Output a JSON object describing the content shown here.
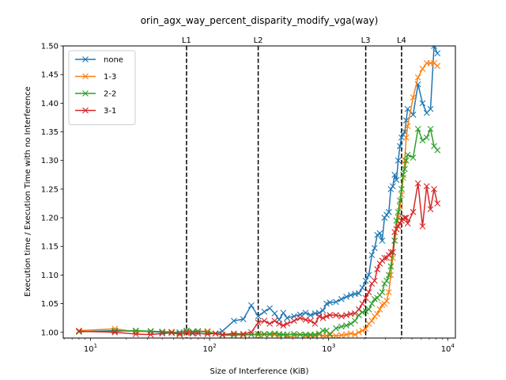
{
  "chart_data": {
    "type": "line",
    "title": "orin_agx_way_percent_disparity_modify_vga(way)",
    "xlabel": "Size of Interference (KiB)",
    "ylabel": "Execution time / Execution Time with no Interference",
    "xscale": "log",
    "xlim": [
      5.9,
      11600
    ],
    "ylim": [
      0.99,
      1.5
    ],
    "x_tick_labels": [
      "10^1",
      "10^2",
      "10^3",
      "10^4"
    ],
    "x_tick_values": [
      10,
      100,
      1000,
      10000
    ],
    "y_ticks": [
      1.0,
      1.1,
      1.2,
      1.3,
      1.4,
      1.5
    ],
    "y_tick_labels": [
      "1.00",
      "1.05",
      "1.10",
      "1.15",
      "1.20",
      "1.25",
      "1.30",
      "1.35",
      "1.40",
      "1.45",
      "1.50"
    ],
    "y_tick_label_values": [
      1.0,
      1.05,
      1.1,
      1.15,
      1.2,
      1.25,
      1.3,
      1.35,
      1.4,
      1.45,
      1.5
    ],
    "grid": false,
    "legend_position": "top-left",
    "marker": "x",
    "vertical_lines": [
      {
        "label": "L1",
        "x": 64
      },
      {
        "label": "L2",
        "x": 256
      },
      {
        "label": "L3",
        "x": 2048
      },
      {
        "label": "L4",
        "x": 4096
      }
    ],
    "series": [
      {
        "name": "none",
        "color": "#1f77b4",
        "points": [
          [
            8,
            1.001
          ],
          [
            16,
            1.003
          ],
          [
            24,
            1.002
          ],
          [
            32,
            1.001
          ],
          [
            40,
            1.0
          ],
          [
            48,
            1.0
          ],
          [
            56,
            1.0
          ],
          [
            64,
            1.001
          ],
          [
            72,
            1.0
          ],
          [
            80,
            1.001
          ],
          [
            96,
            1.001
          ],
          [
            112,
            0.998
          ],
          [
            128,
            1.002
          ],
          [
            160,
            1.02
          ],
          [
            192,
            1.023
          ],
          [
            224,
            1.047
          ],
          [
            256,
            1.028
          ],
          [
            288,
            1.036
          ],
          [
            320,
            1.042
          ],
          [
            352,
            1.033
          ],
          [
            384,
            1.022
          ],
          [
            416,
            1.034
          ],
          [
            448,
            1.025
          ],
          [
            512,
            1.028
          ],
          [
            576,
            1.031
          ],
          [
            640,
            1.034
          ],
          [
            704,
            1.03
          ],
          [
            768,
            1.033
          ],
          [
            832,
            1.034
          ],
          [
            896,
            1.038
          ],
          [
            960,
            1.05
          ],
          [
            1024,
            1.052
          ],
          [
            1152,
            1.053
          ],
          [
            1280,
            1.058
          ],
          [
            1408,
            1.062
          ],
          [
            1536,
            1.065
          ],
          [
            1664,
            1.067
          ],
          [
            1792,
            1.068
          ],
          [
            1920,
            1.078
          ],
          [
            2048,
            1.09
          ],
          [
            2176,
            1.1
          ],
          [
            2304,
            1.135
          ],
          [
            2432,
            1.147
          ],
          [
            2560,
            1.17
          ],
          [
            2688,
            1.173
          ],
          [
            2816,
            1.16
          ],
          [
            2944,
            1.2
          ],
          [
            3072,
            1.205
          ],
          [
            3200,
            1.21
          ],
          [
            3328,
            1.25
          ],
          [
            3456,
            1.255
          ],
          [
            3584,
            1.275
          ],
          [
            3712,
            1.266
          ],
          [
            3840,
            1.3
          ],
          [
            3968,
            1.325
          ],
          [
            4096,
            1.34
          ],
          [
            4224,
            1.345
          ],
          [
            4352,
            1.35
          ],
          [
            4480,
            1.37
          ],
          [
            4608,
            1.39
          ],
          [
            5120,
            1.38
          ],
          [
            5632,
            1.433
          ],
          [
            6144,
            1.4
          ],
          [
            6656,
            1.383
          ],
          [
            7168,
            1.39
          ],
          [
            7680,
            1.5
          ],
          [
            8192,
            1.487
          ]
        ]
      },
      {
        "name": "1-3",
        "color": "#ff7f0e",
        "points": [
          [
            8,
            1.003
          ],
          [
            16,
            1.006
          ],
          [
            24,
            1.001
          ],
          [
            32,
            1.002
          ],
          [
            40,
            1.001
          ],
          [
            48,
            1.001
          ],
          [
            56,
            0.996
          ],
          [
            64,
            1.0
          ],
          [
            72,
            1.001
          ],
          [
            80,
            1.002
          ],
          [
            96,
            1.002
          ],
          [
            112,
            0.998
          ],
          [
            128,
            0.996
          ],
          [
            160,
            0.996
          ],
          [
            192,
            0.995
          ],
          [
            224,
            0.996
          ],
          [
            256,
            0.995
          ],
          [
            288,
            0.996
          ],
          [
            320,
            0.996
          ],
          [
            352,
            0.996
          ],
          [
            384,
            0.994
          ],
          [
            416,
            0.996
          ],
          [
            448,
            0.993
          ],
          [
            512,
            0.994
          ],
          [
            576,
            0.996
          ],
          [
            640,
            0.994
          ],
          [
            704,
            0.994
          ],
          [
            768,
            0.994
          ],
          [
            832,
            0.996
          ],
          [
            896,
            0.994
          ],
          [
            960,
            0.994
          ],
          [
            1024,
            0.995
          ],
          [
            1152,
            0.994
          ],
          [
            1280,
            0.995
          ],
          [
            1408,
            0.996
          ],
          [
            1536,
            0.998
          ],
          [
            1664,
            0.996
          ],
          [
            1792,
            1.0
          ],
          [
            1920,
            1.003
          ],
          [
            2048,
            1.006
          ],
          [
            2176,
            1.015
          ],
          [
            2304,
            1.02
          ],
          [
            2432,
            1.028
          ],
          [
            2560,
            1.032
          ],
          [
            2688,
            1.04
          ],
          [
            2816,
            1.048
          ],
          [
            2944,
            1.05
          ],
          [
            3072,
            1.055
          ],
          [
            3200,
            1.07
          ],
          [
            3328,
            1.1
          ],
          [
            3456,
            1.13
          ],
          [
            3584,
            1.16
          ],
          [
            3712,
            1.18
          ],
          [
            3840,
            1.2
          ],
          [
            3968,
            1.22
          ],
          [
            4096,
            1.24
          ],
          [
            4224,
            1.27
          ],
          [
            4352,
            1.3
          ],
          [
            4480,
            1.34
          ],
          [
            4608,
            1.36
          ],
          [
            5120,
            1.41
          ],
          [
            5632,
            1.445
          ],
          [
            6144,
            1.46
          ],
          [
            6656,
            1.47
          ],
          [
            7168,
            1.47
          ],
          [
            7680,
            1.47
          ],
          [
            8192,
            1.465
          ]
        ]
      },
      {
        "name": "2-2",
        "color": "#2ca02c",
        "points": [
          [
            8,
            1.001
          ],
          [
            16,
            1.002
          ],
          [
            24,
            1.003
          ],
          [
            32,
            1.002
          ],
          [
            40,
            1.001
          ],
          [
            48,
            1.0
          ],
          [
            56,
            0.999
          ],
          [
            64,
            1.003
          ],
          [
            72,
            1.001
          ],
          [
            80,
            1.002
          ],
          [
            96,
            1.0
          ],
          [
            112,
            0.998
          ],
          [
            128,
            0.995
          ],
          [
            160,
            0.995
          ],
          [
            192,
            0.996
          ],
          [
            224,
            0.996
          ],
          [
            256,
            0.997
          ],
          [
            288,
            0.997
          ],
          [
            320,
            0.997
          ],
          [
            352,
            0.998
          ],
          [
            384,
            0.997
          ],
          [
            416,
            0.996
          ],
          [
            448,
            0.996
          ],
          [
            512,
            0.997
          ],
          [
            576,
            0.996
          ],
          [
            640,
            0.996
          ],
          [
            704,
            0.996
          ],
          [
            768,
            0.996
          ],
          [
            832,
            0.998
          ],
          [
            896,
            1.003
          ],
          [
            960,
            1.003
          ],
          [
            1024,
            0.997
          ],
          [
            1152,
            1.007
          ],
          [
            1280,
            1.01
          ],
          [
            1408,
            1.012
          ],
          [
            1536,
            1.015
          ],
          [
            1664,
            1.02
          ],
          [
            1792,
            1.03
          ],
          [
            1920,
            1.035
          ],
          [
            2048,
            1.037
          ],
          [
            2176,
            1.04
          ],
          [
            2304,
            1.05
          ],
          [
            2432,
            1.058
          ],
          [
            2560,
            1.06
          ],
          [
            2688,
            1.065
          ],
          [
            2816,
            1.07
          ],
          [
            2944,
            1.085
          ],
          [
            3072,
            1.09
          ],
          [
            3200,
            1.1
          ],
          [
            3328,
            1.115
          ],
          [
            3456,
            1.14
          ],
          [
            3584,
            1.16
          ],
          [
            3712,
            1.195
          ],
          [
            3840,
            1.21
          ],
          [
            3968,
            1.23
          ],
          [
            4096,
            1.25
          ],
          [
            4224,
            1.275
          ],
          [
            4352,
            1.285
          ],
          [
            4480,
            1.3
          ],
          [
            4608,
            1.31
          ],
          [
            5120,
            1.305
          ],
          [
            5632,
            1.355
          ],
          [
            6144,
            1.335
          ],
          [
            6656,
            1.34
          ],
          [
            7168,
            1.355
          ],
          [
            7680,
            1.325
          ],
          [
            8192,
            1.318
          ]
        ]
      },
      {
        "name": "3-1",
        "color": "#d62728",
        "points": [
          [
            8,
            1.002
          ],
          [
            16,
            1.0
          ],
          [
            24,
            0.997
          ],
          [
            32,
            0.996
          ],
          [
            40,
            0.998
          ],
          [
            48,
            0.999
          ],
          [
            56,
            0.997
          ],
          [
            64,
            0.999
          ],
          [
            72,
            0.998
          ],
          [
            80,
            0.998
          ],
          [
            96,
            0.997
          ],
          [
            112,
            0.998
          ],
          [
            128,
            0.996
          ],
          [
            160,
            0.998
          ],
          [
            192,
            0.997
          ],
          [
            224,
            1.0
          ],
          [
            256,
            1.017
          ],
          [
            288,
            1.02
          ],
          [
            320,
            1.015
          ],
          [
            352,
            1.02
          ],
          [
            384,
            1.015
          ],
          [
            416,
            1.012
          ],
          [
            448,
            1.015
          ],
          [
            512,
            1.02
          ],
          [
            576,
            1.025
          ],
          [
            640,
            1.022
          ],
          [
            704,
            1.02
          ],
          [
            768,
            1.015
          ],
          [
            832,
            1.028
          ],
          [
            896,
            1.025
          ],
          [
            960,
            1.028
          ],
          [
            1024,
            1.03
          ],
          [
            1152,
            1.03
          ],
          [
            1280,
            1.028
          ],
          [
            1408,
            1.03
          ],
          [
            1536,
            1.032
          ],
          [
            1664,
            1.033
          ],
          [
            1792,
            1.04
          ],
          [
            1920,
            1.05
          ],
          [
            2048,
            1.06
          ],
          [
            2176,
            1.07
          ],
          [
            2304,
            1.085
          ],
          [
            2432,
            1.09
          ],
          [
            2560,
            1.11
          ],
          [
            2688,
            1.12
          ],
          [
            2816,
            1.125
          ],
          [
            2944,
            1.13
          ],
          [
            3072,
            1.13
          ],
          [
            3200,
            1.135
          ],
          [
            3328,
            1.14
          ],
          [
            3456,
            1.14
          ],
          [
            3584,
            1.175
          ],
          [
            3712,
            1.18
          ],
          [
            3840,
            1.185
          ],
          [
            3968,
            1.19
          ],
          [
            4096,
            1.195
          ],
          [
            4224,
            1.198
          ],
          [
            4352,
            1.2
          ],
          [
            4480,
            1.2
          ],
          [
            4608,
            1.19
          ],
          [
            5120,
            1.21
          ],
          [
            5632,
            1.26
          ],
          [
            6144,
            1.185
          ],
          [
            6656,
            1.255
          ],
          [
            7168,
            1.215
          ],
          [
            7680,
            1.25
          ],
          [
            8192,
            1.225
          ]
        ]
      }
    ]
  }
}
